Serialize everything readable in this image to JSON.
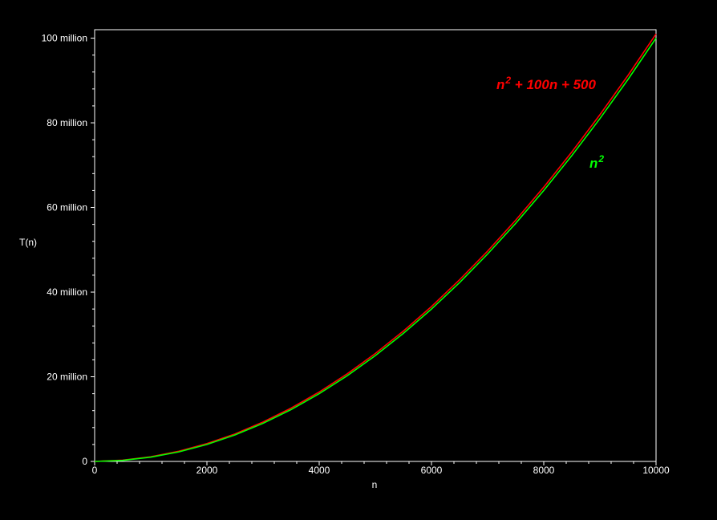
{
  "chart_data": {
    "type": "line",
    "xlabel": "n",
    "ylabel": "T(n)",
    "xlim": [
      0,
      10000
    ],
    "ylim": [
      0,
      102000000
    ],
    "grid": false,
    "x_ticks": [
      0,
      2000,
      4000,
      6000,
      8000,
      10000
    ],
    "x_tick_labels": [
      "0",
      "2000",
      "4000",
      "6000",
      "8000",
      "10000"
    ],
    "y_ticks": [
      0,
      20000000,
      40000000,
      60000000,
      80000000,
      100000000
    ],
    "y_tick_labels": [
      "0",
      "20 million",
      "40 million",
      "60 million",
      "80 million",
      "100 million"
    ],
    "x": [
      0,
      500,
      1000,
      1500,
      2000,
      2500,
      3000,
      3500,
      4000,
      4500,
      5000,
      5500,
      6000,
      6500,
      7000,
      7500,
      8000,
      8500,
      9000,
      9500,
      10000
    ],
    "series": [
      {
        "color": "#ff0000",
        "values": [
          500,
          300500,
          1100500,
          2400500,
          4200500,
          6500500,
          9300500,
          12600500,
          16400500,
          20700500,
          25500500,
          30800500,
          36600500,
          42900500,
          49700500,
          57000500,
          64800500,
          73100500,
          81900500,
          91200500,
          101000500
        ]
      },
      {
        "color": "#00ff00",
        "values": [
          0,
          250000,
          1000000,
          2250000,
          4000000,
          6250000,
          9000000,
          12250000,
          16000000,
          20250000,
          25000000,
          30250000,
          36000000,
          42250000,
          49000000,
          56250000,
          64000000,
          72250000,
          81000000,
          90250000,
          100000000
        ]
      }
    ],
    "annotations": [
      {
        "color": "#ff0000",
        "parts": [
          {
            "text": "n",
            "sup": false
          },
          {
            "text": "2",
            "sup": true
          },
          {
            "text": " + 100",
            "sup": false
          },
          {
            "text": "n",
            "sup": false
          },
          {
            "text": " + 500",
            "sup": false
          }
        ]
      },
      {
        "color": "#00ff00",
        "parts": [
          {
            "text": "n",
            "sup": false
          },
          {
            "text": "2",
            "sup": true
          }
        ]
      }
    ]
  }
}
